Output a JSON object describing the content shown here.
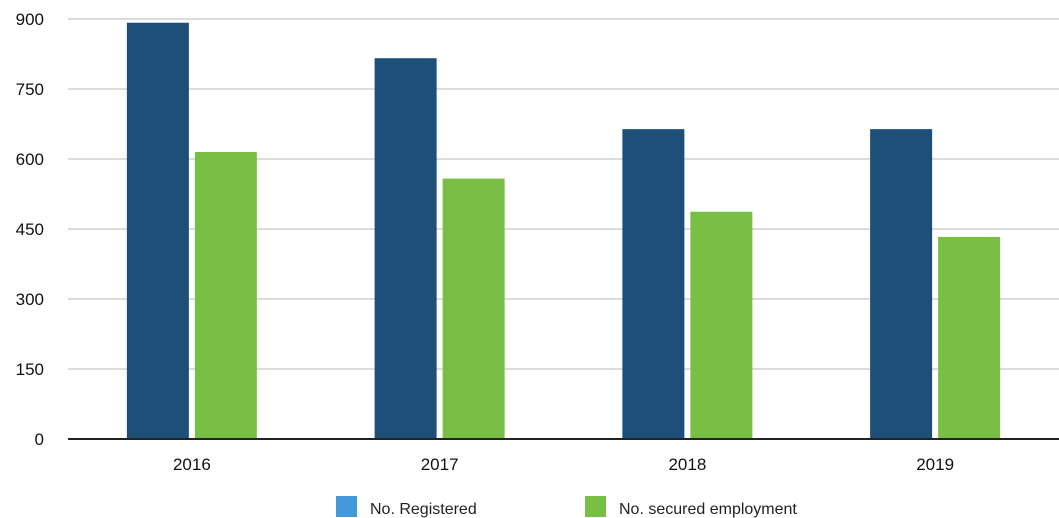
{
  "chart_data": {
    "type": "bar",
    "categories": [
      "2016",
      "2017",
      "2018",
      "2019"
    ],
    "series": [
      {
        "name": "No. Registered",
        "values": [
          892,
          816,
          664,
          664
        ],
        "color": "#1d4f79",
        "legend_color": "#4499d8"
      },
      {
        "name": "No. secured employment",
        "values": [
          615,
          558,
          487,
          433
        ],
        "color": "#79bf46",
        "legend_color": "#79bf46"
      }
    ],
    "y_ticks": [
      0,
      150,
      300,
      450,
      600,
      750,
      900
    ],
    "ylim": [
      0,
      900
    ],
    "grid": true,
    "legend_position": "bottom"
  }
}
